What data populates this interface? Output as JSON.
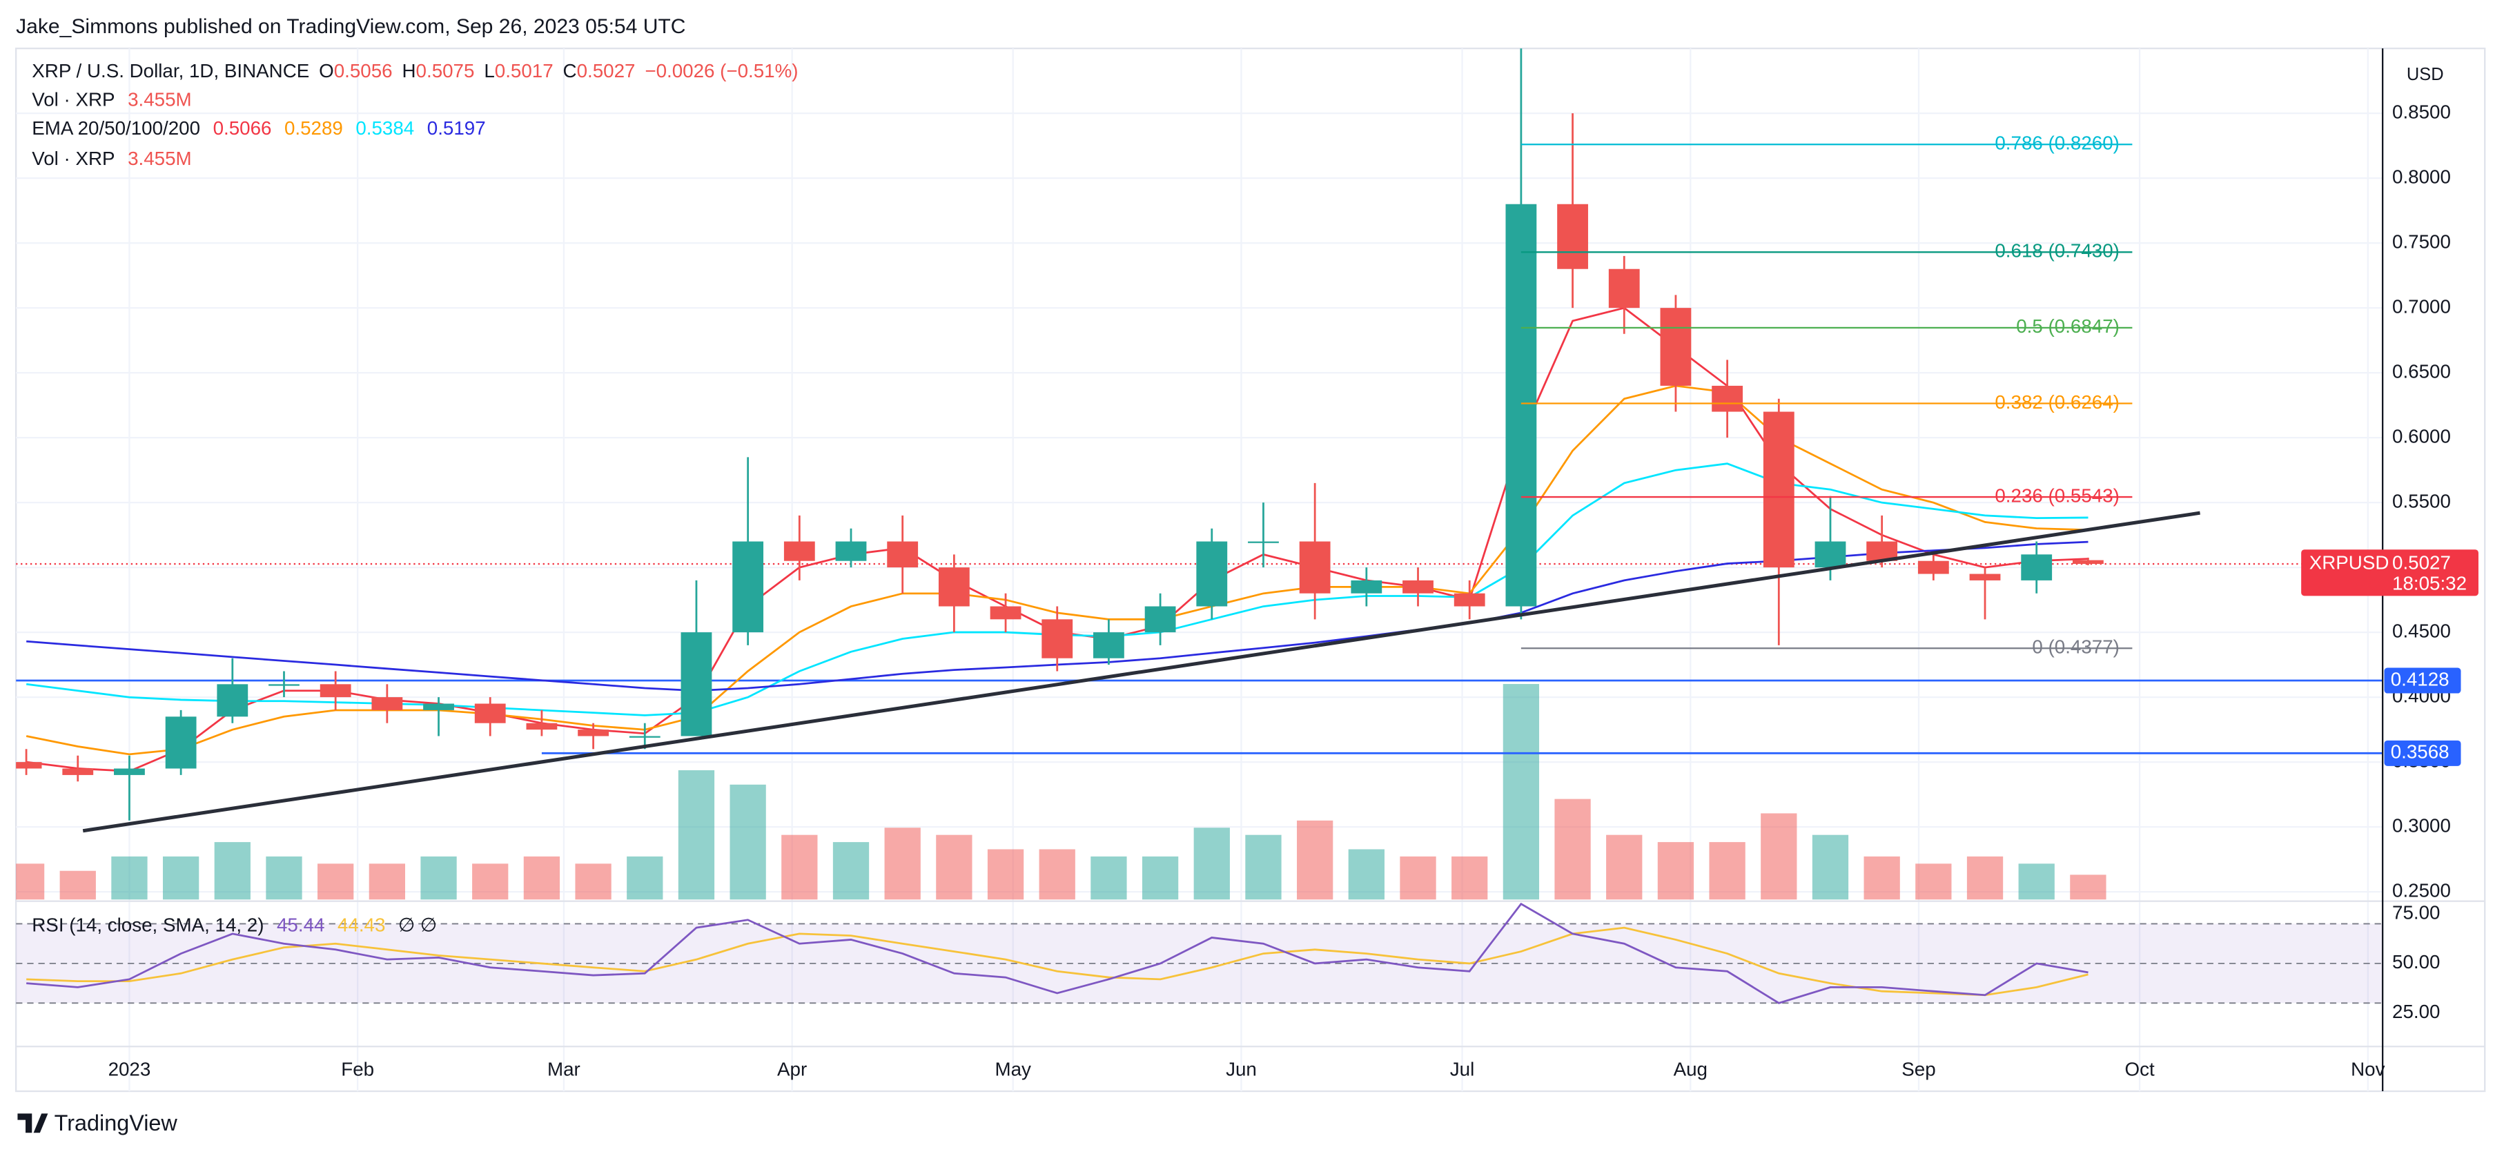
{
  "chart_data": {
    "type": "candlestick",
    "header": "Jake_Simmons published on TradingView.com, Sep 26, 2023 05:54 UTC",
    "title": "XRP / U.S. Dollar, 1D, BINANCE",
    "ohlc_legend": [
      {
        "key": "O",
        "value": "0.5056"
      },
      {
        "key": "H",
        "value": "0.5075"
      },
      {
        "key": "L",
        "value": "0.5017"
      },
      {
        "key": "C",
        "value": "0.5027"
      }
    ],
    "change": "−0.0026 (−0.51%)",
    "volume_legend": {
      "label": "Vol · XRP",
      "value": "3.455M"
    },
    "currency": "USD",
    "footer": "TradingView",
    "up_color": "#26a69a",
    "down_color": "#ef5350",
    "grid": true,
    "xlim": [
      -15.4,
      306
    ],
    "xticks": [
      {
        "value": 0,
        "label": "2023"
      },
      {
        "value": 31,
        "label": "Feb"
      },
      {
        "value": 59,
        "label": "Mar"
      },
      {
        "value": 90,
        "label": "Apr"
      },
      {
        "value": 120,
        "label": "May"
      },
      {
        "value": 151,
        "label": "Jun"
      },
      {
        "value": 181,
        "label": "Jul"
      },
      {
        "value": 212,
        "label": "Aug"
      },
      {
        "value": 243,
        "label": "Sep"
      },
      {
        "value": 273,
        "label": "Oct"
      },
      {
        "value": 304,
        "label": "Nov"
      }
    ],
    "ylim": [
      0.244,
      0.9
    ],
    "yticks": [
      {
        "value": 0.25,
        "label": "0.2500"
      },
      {
        "value": 0.3,
        "label": "0.3000"
      },
      {
        "value": 0.35,
        "label": "0.3500"
      },
      {
        "value": 0.4,
        "label": "0.4000"
      },
      {
        "value": 0.45,
        "label": "0.4500"
      },
      {
        "value": 0.5,
        "label": "0.5000"
      },
      {
        "value": 0.55,
        "label": "0.5500"
      },
      {
        "value": 0.6,
        "label": "0.6000"
      },
      {
        "value": 0.65,
        "label": "0.6500"
      },
      {
        "value": 0.7,
        "label": "0.7000"
      },
      {
        "value": 0.75,
        "label": "0.7500"
      },
      {
        "value": 0.8,
        "label": "0.8000"
      },
      {
        "value": 0.85,
        "label": "0.8500"
      }
    ],
    "x": [
      -14,
      -7,
      0,
      7,
      14,
      21,
      28,
      35,
      42,
      49,
      56,
      63,
      70,
      77,
      84,
      91,
      98,
      105,
      112,
      119,
      126,
      133,
      140,
      147,
      154,
      161,
      168,
      175,
      182,
      189,
      196,
      203,
      210,
      217,
      224,
      231,
      238,
      245,
      252,
      259,
      266
    ],
    "open": [
      0.35,
      0.345,
      0.34,
      0.345,
      0.385,
      0.41,
      0.41,
      0.4,
      0.39,
      0.395,
      0.38,
      0.375,
      0.37,
      0.37,
      0.45,
      0.52,
      0.505,
      0.52,
      0.5,
      0.47,
      0.46,
      0.43,
      0.45,
      0.47,
      0.52,
      0.52,
      0.48,
      0.49,
      0.48,
      0.47,
      0.78,
      0.73,
      0.7,
      0.64,
      0.62,
      0.5,
      0.52,
      0.505,
      0.495,
      0.49,
      0.5056
    ],
    "high": [
      0.36,
      0.355,
      0.355,
      0.39,
      0.43,
      0.42,
      0.42,
      0.41,
      0.4,
      0.4,
      0.39,
      0.38,
      0.38,
      0.49,
      0.585,
      0.54,
      0.53,
      0.54,
      0.51,
      0.48,
      0.47,
      0.46,
      0.48,
      0.53,
      0.55,
      0.565,
      0.5,
      0.5,
      0.49,
      0.9,
      0.85,
      0.74,
      0.71,
      0.66,
      0.63,
      0.555,
      0.54,
      0.51,
      0.5,
      0.52,
      0.5075
    ],
    "low": [
      0.34,
      0.335,
      0.305,
      0.34,
      0.38,
      0.4,
      0.39,
      0.38,
      0.37,
      0.37,
      0.37,
      0.36,
      0.36,
      0.37,
      0.44,
      0.49,
      0.5,
      0.48,
      0.45,
      0.45,
      0.42,
      0.425,
      0.44,
      0.46,
      0.5,
      0.46,
      0.47,
      0.47,
      0.46,
      0.46,
      0.7,
      0.68,
      0.62,
      0.6,
      0.44,
      0.49,
      0.5,
      0.49,
      0.46,
      0.48,
      0.5017
    ],
    "close": [
      0.345,
      0.34,
      0.345,
      0.385,
      0.41,
      0.41,
      0.4,
      0.39,
      0.395,
      0.38,
      0.375,
      0.37,
      0.37,
      0.45,
      0.52,
      0.505,
      0.52,
      0.5,
      0.47,
      0.46,
      0.43,
      0.45,
      0.47,
      0.52,
      0.52,
      0.48,
      0.49,
      0.48,
      0.47,
      0.78,
      0.73,
      0.7,
      0.64,
      0.62,
      0.5,
      0.52,
      0.505,
      0.495,
      0.49,
      0.51,
      0.5027
    ],
    "volume": [
      5,
      4,
      6,
      6,
      8,
      6,
      5,
      5,
      6,
      5,
      6,
      5,
      6,
      18,
      16,
      9,
      8,
      10,
      9,
      7,
      7,
      6,
      6,
      10,
      9,
      11,
      7,
      6,
      6,
      30,
      14,
      9,
      8,
      8,
      12,
      9,
      6,
      5,
      6,
      5,
      3.455
    ],
    "ema": {
      "label": "EMA 20/50/100/200",
      "series": [
        {
          "color": "#f23645",
          "value_label": "0.5066",
          "values": [
            0.35,
            0.345,
            0.343,
            0.36,
            0.39,
            0.405,
            0.405,
            0.398,
            0.395,
            0.388,
            0.38,
            0.375,
            0.372,
            0.4,
            0.47,
            0.5,
            0.51,
            0.515,
            0.49,
            0.47,
            0.45,
            0.445,
            0.455,
            0.49,
            0.51,
            0.5,
            0.49,
            0.485,
            0.475,
            0.6,
            0.69,
            0.7,
            0.67,
            0.64,
            0.58,
            0.545,
            0.525,
            0.51,
            0.5,
            0.505,
            0.5066
          ]
        },
        {
          "color": "#ff9800",
          "value_label": "0.5289",
          "values": [
            0.37,
            0.362,
            0.356,
            0.36,
            0.375,
            0.385,
            0.39,
            0.39,
            0.39,
            0.387,
            0.383,
            0.378,
            0.375,
            0.385,
            0.42,
            0.45,
            0.47,
            0.48,
            0.48,
            0.475,
            0.465,
            0.46,
            0.46,
            0.47,
            0.48,
            0.485,
            0.485,
            0.485,
            0.48,
            0.53,
            0.59,
            0.63,
            0.64,
            0.635,
            0.6,
            0.58,
            0.56,
            0.55,
            0.535,
            0.53,
            0.5289
          ]
        },
        {
          "color": "#00e5ff",
          "value_label": "0.5384",
          "values": [
            0.41,
            0.405,
            0.4,
            0.398,
            0.397,
            0.397,
            0.396,
            0.395,
            0.394,
            0.392,
            0.39,
            0.388,
            0.386,
            0.388,
            0.4,
            0.42,
            0.435,
            0.445,
            0.45,
            0.45,
            0.448,
            0.447,
            0.45,
            0.46,
            0.47,
            0.475,
            0.478,
            0.478,
            0.477,
            0.5,
            0.54,
            0.565,
            0.575,
            0.58,
            0.565,
            0.56,
            0.55,
            0.545,
            0.54,
            0.538,
            0.5384
          ]
        },
        {
          "color": "#2a2ae0",
          "value_label": "0.5197",
          "values": [
            0.443,
            0.44,
            0.437,
            0.434,
            0.431,
            0.428,
            0.425,
            0.422,
            0.419,
            0.416,
            0.413,
            0.41,
            0.407,
            0.405,
            0.407,
            0.41,
            0.414,
            0.418,
            0.421,
            0.423,
            0.425,
            0.427,
            0.43,
            0.434,
            0.438,
            0.442,
            0.447,
            0.452,
            0.457,
            0.465,
            0.48,
            0.49,
            0.497,
            0.503,
            0.505,
            0.508,
            0.511,
            0.513,
            0.515,
            0.518,
            0.5197
          ]
        }
      ]
    },
    "trendline": {
      "color": "#2a2e39",
      "x": [
        -6.3,
        281.2
      ],
      "y": [
        0.297,
        0.542
      ]
    },
    "fib": {
      "x": [
        189,
        272
      ],
      "levels": [
        {
          "price": 0.826,
          "label": "0.786 (0.8260)",
          "color": "#00bcd4"
        },
        {
          "price": 0.743,
          "label": "0.618 (0.7430)",
          "color": "#089981"
        },
        {
          "price": 0.6847,
          "label": "0.5 (0.6847)",
          "color": "#4caf50"
        },
        {
          "price": 0.6264,
          "label": "0.382 (0.6264)",
          "color": "#ff9800"
        },
        {
          "price": 0.5543,
          "label": "0.236 (0.5543)",
          "color": "#f23645"
        },
        {
          "price": 0.4377,
          "label": "0 (0.4377)",
          "color": "#787b86"
        }
      ]
    },
    "hlines": [
      {
        "price": 0.4128,
        "label": "0.4128",
        "color": "#2962ff",
        "x_start": -15.4
      },
      {
        "price": 0.3568,
        "label": "0.3568",
        "color": "#2962ff",
        "x_start": 56
      }
    ],
    "last": {
      "symbol": "XRPUSD",
      "price": 0.5027,
      "label": "0.5027",
      "countdown": "18:05:32",
      "color": "#f23645"
    },
    "rsi": {
      "label": "RSI (14, close, SMA, 14, 2)",
      "value_label": "45.44",
      "sma_label": "44.43",
      "extra": "∅ ∅",
      "color": "#7e57c2",
      "sma_color": "#f7c23a",
      "ylim": [
        10.5,
        80.6
      ],
      "yticks": [
        {
          "value": 25,
          "label": "25.00"
        },
        {
          "value": 50,
          "label": "50.00"
        },
        {
          "value": 75,
          "label": "75.00"
        }
      ],
      "bands": [
        70,
        50,
        30
      ],
      "values": [
        40,
        38,
        42,
        55,
        65,
        60,
        57,
        52,
        53,
        48,
        46,
        44,
        45,
        68,
        72,
        60,
        62,
        55,
        45,
        43,
        35,
        42,
        50,
        63,
        60,
        50,
        52,
        48,
        46,
        80,
        65,
        60,
        48,
        46,
        30,
        38,
        38,
        36,
        34,
        50,
        45.44
      ],
      "sma": [
        42,
        41,
        41,
        45,
        52,
        58,
        60,
        57,
        54,
        52,
        50,
        48,
        46,
        52,
        60,
        65,
        64,
        60,
        56,
        52,
        46,
        43,
        42,
        48,
        55,
        57,
        55,
        52,
        50,
        56,
        65,
        68,
        62,
        55,
        45,
        40,
        36,
        35,
        34,
        38,
        44.43
      ]
    }
  }
}
